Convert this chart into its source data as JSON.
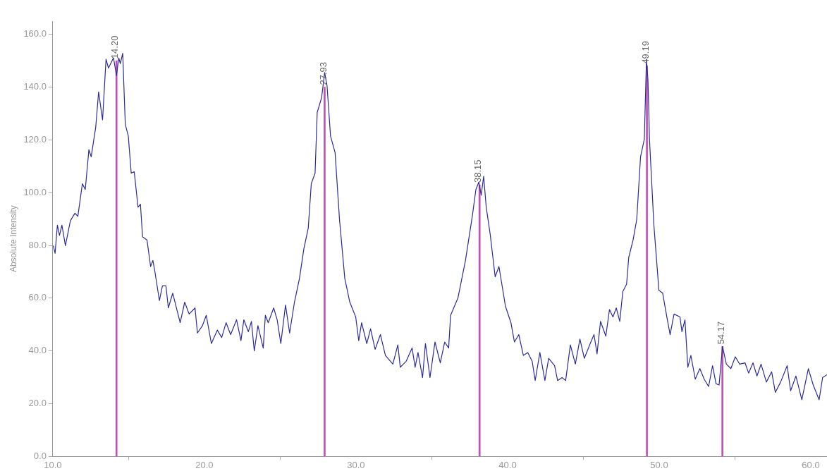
{
  "chart_data": {
    "type": "line",
    "ylabel": "Absolute Intensity",
    "xlim": [
      10,
      61.07
    ],
    "ylim": [
      0,
      165
    ],
    "xticks": [
      {
        "value": 10,
        "label": "10.0"
      },
      {
        "value": 20,
        "label": "20.0"
      },
      {
        "value": 30,
        "label": "30.0"
      },
      {
        "value": 40,
        "label": "40.0"
      },
      {
        "value": 50,
        "label": "50.0"
      },
      {
        "value": 60,
        "label": "60.0"
      }
    ],
    "yticks": [
      {
        "value": 0,
        "label": "0.0"
      },
      {
        "value": 20,
        "label": "20.0"
      },
      {
        "value": 40,
        "label": "40.0"
      },
      {
        "value": 60,
        "label": "60.0"
      },
      {
        "value": 80,
        "label": "80.0"
      },
      {
        "value": 100,
        "label": "100.0"
      },
      {
        "value": 120,
        "label": "120.0"
      },
      {
        "value": 140,
        "label": "140.0"
      },
      {
        "value": 160,
        "label": "160.0"
      }
    ],
    "grid": false,
    "legend": false,
    "marker": "none",
    "line_style": "solid",
    "series": [
      {
        "color": "#2b2b9a",
        "x": [
          10.03,
          10.15,
          10.3,
          10.44,
          10.6,
          10.83,
          11.16,
          11.46,
          11.65,
          11.95,
          12.14,
          12.38,
          12.53,
          12.83,
          13.02,
          13.28,
          13.51,
          13.67,
          14.0,
          14.2,
          14.35,
          14.45,
          14.61,
          14.78,
          14.98,
          15.17,
          15.37,
          15.62,
          15.78,
          15.92,
          16.21,
          16.45,
          16.6,
          16.74,
          17.03,
          17.23,
          17.46,
          17.62,
          17.91,
          18.4,
          18.7,
          18.99,
          19.38,
          19.54,
          19.87,
          20.12,
          20.46,
          20.85,
          21.14,
          21.43,
          21.73,
          22.12,
          22.41,
          22.6,
          22.9,
          23.1,
          23.29,
          23.53,
          23.88,
          24.02,
          24.21,
          24.57,
          24.8,
          25.04,
          25.35,
          25.62,
          25.94,
          26.27,
          26.56,
          26.85,
          27.05,
          27.3,
          27.44,
          27.73,
          27.93,
          28.09,
          28.32,
          28.62,
          28.91,
          29.26,
          29.59,
          29.98,
          30.18,
          30.37,
          30.71,
          30.96,
          31.26,
          31.61,
          31.94,
          32.43,
          32.76,
          32.92,
          33.31,
          33.7,
          33.9,
          34.09,
          34.39,
          34.58,
          34.88,
          35.21,
          35.56,
          35.85,
          36.11,
          36.24,
          36.73,
          37.22,
          37.67,
          37.91,
          38.1,
          38.26,
          38.42,
          38.59,
          38.85,
          39.18,
          39.43,
          39.86,
          40.22,
          40.45,
          40.74,
          41.04,
          41.33,
          41.62,
          41.82,
          42.13,
          42.46,
          42.71,
          43.1,
          43.3,
          43.59,
          43.83,
          44.14,
          44.47,
          44.77,
          45.06,
          45.45,
          45.7,
          45.9,
          46.13,
          46.48,
          46.72,
          46.95,
          47.17,
          47.4,
          47.6,
          47.85,
          47.99,
          48.28,
          48.52,
          48.77,
          49.02,
          49.16,
          49.26,
          49.36,
          49.65,
          49.98,
          50.23,
          50.47,
          50.72,
          50.98,
          51.37,
          51.5,
          51.7,
          51.89,
          52.09,
          52.38,
          52.68,
          52.97,
          53.26,
          53.52,
          53.75,
          53.95,
          54.18,
          54.43,
          54.73,
          55.02,
          55.31,
          55.66,
          55.9,
          56.19,
          56.45,
          56.72,
          57.07,
          57.42,
          57.66,
          58.01,
          58.44,
          58.67,
          59.02,
          59.41,
          59.84,
          60.16,
          60.55,
          60.78,
          61.07
        ],
        "values": [
          79.9,
          77,
          87.7,
          83.8,
          87.7,
          79.9,
          89.4,
          92.2,
          91,
          103.4,
          101.2,
          116.3,
          113.6,
          124.8,
          138.2,
          127.6,
          150.6,
          147.2,
          151.1,
          144.4,
          151.1,
          148.9,
          152.8,
          125.9,
          121.4,
          107.4,
          107.9,
          94.5,
          95.6,
          83.2,
          82.1,
          72,
          74.3,
          69.8,
          59.1,
          64.7,
          64.7,
          56.3,
          61.9,
          50.7,
          58.5,
          54,
          56.3,
          46.8,
          49.6,
          53.5,
          42.8,
          47.9,
          45.1,
          50.7,
          46.2,
          51.8,
          43.9,
          51.8,
          47.3,
          51.2,
          40,
          49.6,
          41.1,
          53.5,
          50.7,
          56.3,
          51.8,
          42.8,
          57.4,
          46.8,
          58.5,
          67.5,
          78.7,
          86.6,
          103.4,
          107.4,
          130.4,
          136,
          145.5,
          140.5,
          121.4,
          115.2,
          89.9,
          67.5,
          58.5,
          52.9,
          43.9,
          50.7,
          42.8,
          48.4,
          40.6,
          46.2,
          38.3,
          35,
          42.3,
          33.8,
          36.1,
          41.1,
          33.8,
          39.4,
          29.9,
          42.8,
          29.9,
          43.4,
          35.5,
          43.4,
          41.1,
          53.5,
          60.2,
          74.3,
          91,
          101.2,
          104,
          99,
          106.2,
          94.5,
          84.3,
          68.1,
          72,
          56.9,
          50.7,
          43.4,
          46.2,
          38.3,
          39.4,
          36.1,
          28.8,
          39.4,
          28.8,
          37.2,
          34.4,
          28.8,
          29.9,
          28.8,
          42.3,
          35,
          44.5,
          37.2,
          42.8,
          46.2,
          38.9,
          51.2,
          45.6,
          55.7,
          52.9,
          56.3,
          51.2,
          62.5,
          65.3,
          75.4,
          82.1,
          89.9,
          113.6,
          120.3,
          150.6,
          142.7,
          120.3,
          87.7,
          63,
          61.9,
          54,
          46.2,
          54,
          52.9,
          47.3,
          51.8,
          33.8,
          38.3,
          29.3,
          33.3,
          29.3,
          26.5,
          34.4,
          27.6,
          27.1,
          41.7,
          35,
          33.3,
          37.8,
          35,
          35.5,
          31.6,
          35.5,
          30.5,
          35,
          28.2,
          32.1,
          24.3,
          28.2,
          34.4,
          24.9,
          30.5,
          21.5,
          33.3,
          27.1,
          21.5,
          29.9,
          31
        ]
      },
      {
        "type": "bar",
        "color": "#c050b8",
        "x": [
          14.2,
          27.93,
          38.15,
          49.19,
          54.17
        ],
        "values": [
          150,
          140,
          103,
          148,
          41.7
        ]
      }
    ],
    "annotations": [
      {
        "text": "14.20",
        "x": 14.2,
        "y": 150
      },
      {
        "text": "27.93",
        "x": 27.93,
        "y": 140
      },
      {
        "text": "38.15",
        "x": 38.15,
        "y": 103
      },
      {
        "text": "49.19",
        "x": 49.19,
        "y": 148
      },
      {
        "text": "54.17",
        "x": 54.17,
        "y": 41.7
      }
    ]
  }
}
